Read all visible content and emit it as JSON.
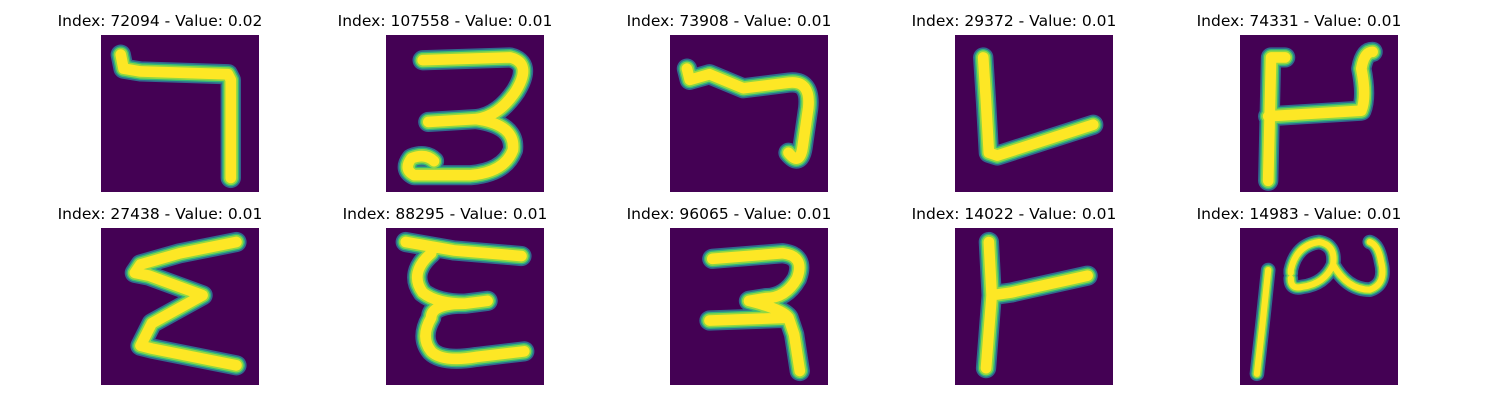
{
  "figure": {
    "colormap": {
      "background": "#440154",
      "edge_dark": "#31688e",
      "edge_mid": "#35b779",
      "edge_light": "#90d743",
      "foreground": "#fde725"
    },
    "panels": [
      {
        "title": "Index: 72094 - Value: 0.02",
        "glyph": "seven-shape"
      },
      {
        "title": "Index: 107558 - Value: 0.01",
        "glyph": "three-shape"
      },
      {
        "title": "Index: 73908 - Value: 0.01",
        "glyph": "seven-hook-shape"
      },
      {
        "title": "Index: 29372 - Value: 0.01",
        "glyph": "l-shape"
      },
      {
        "title": "Index: 74331 - Value: 0.01",
        "glyph": "u-bar-shape"
      },
      {
        "title": "Index: 27438 - Value: 0.01",
        "glyph": "sigma-shape"
      },
      {
        "title": "Index: 88295 - Value: 0.01",
        "glyph": "epsilon-shape"
      },
      {
        "title": "Index: 96065 - Value: 0.01",
        "glyph": "reversed-r-shape"
      },
      {
        "title": "Index: 14022 - Value: 0.01",
        "glyph": "t-rotated-shape"
      },
      {
        "title": "Index: 14983 - Value: 0.01",
        "glyph": "n-curl-shape"
      }
    ]
  }
}
